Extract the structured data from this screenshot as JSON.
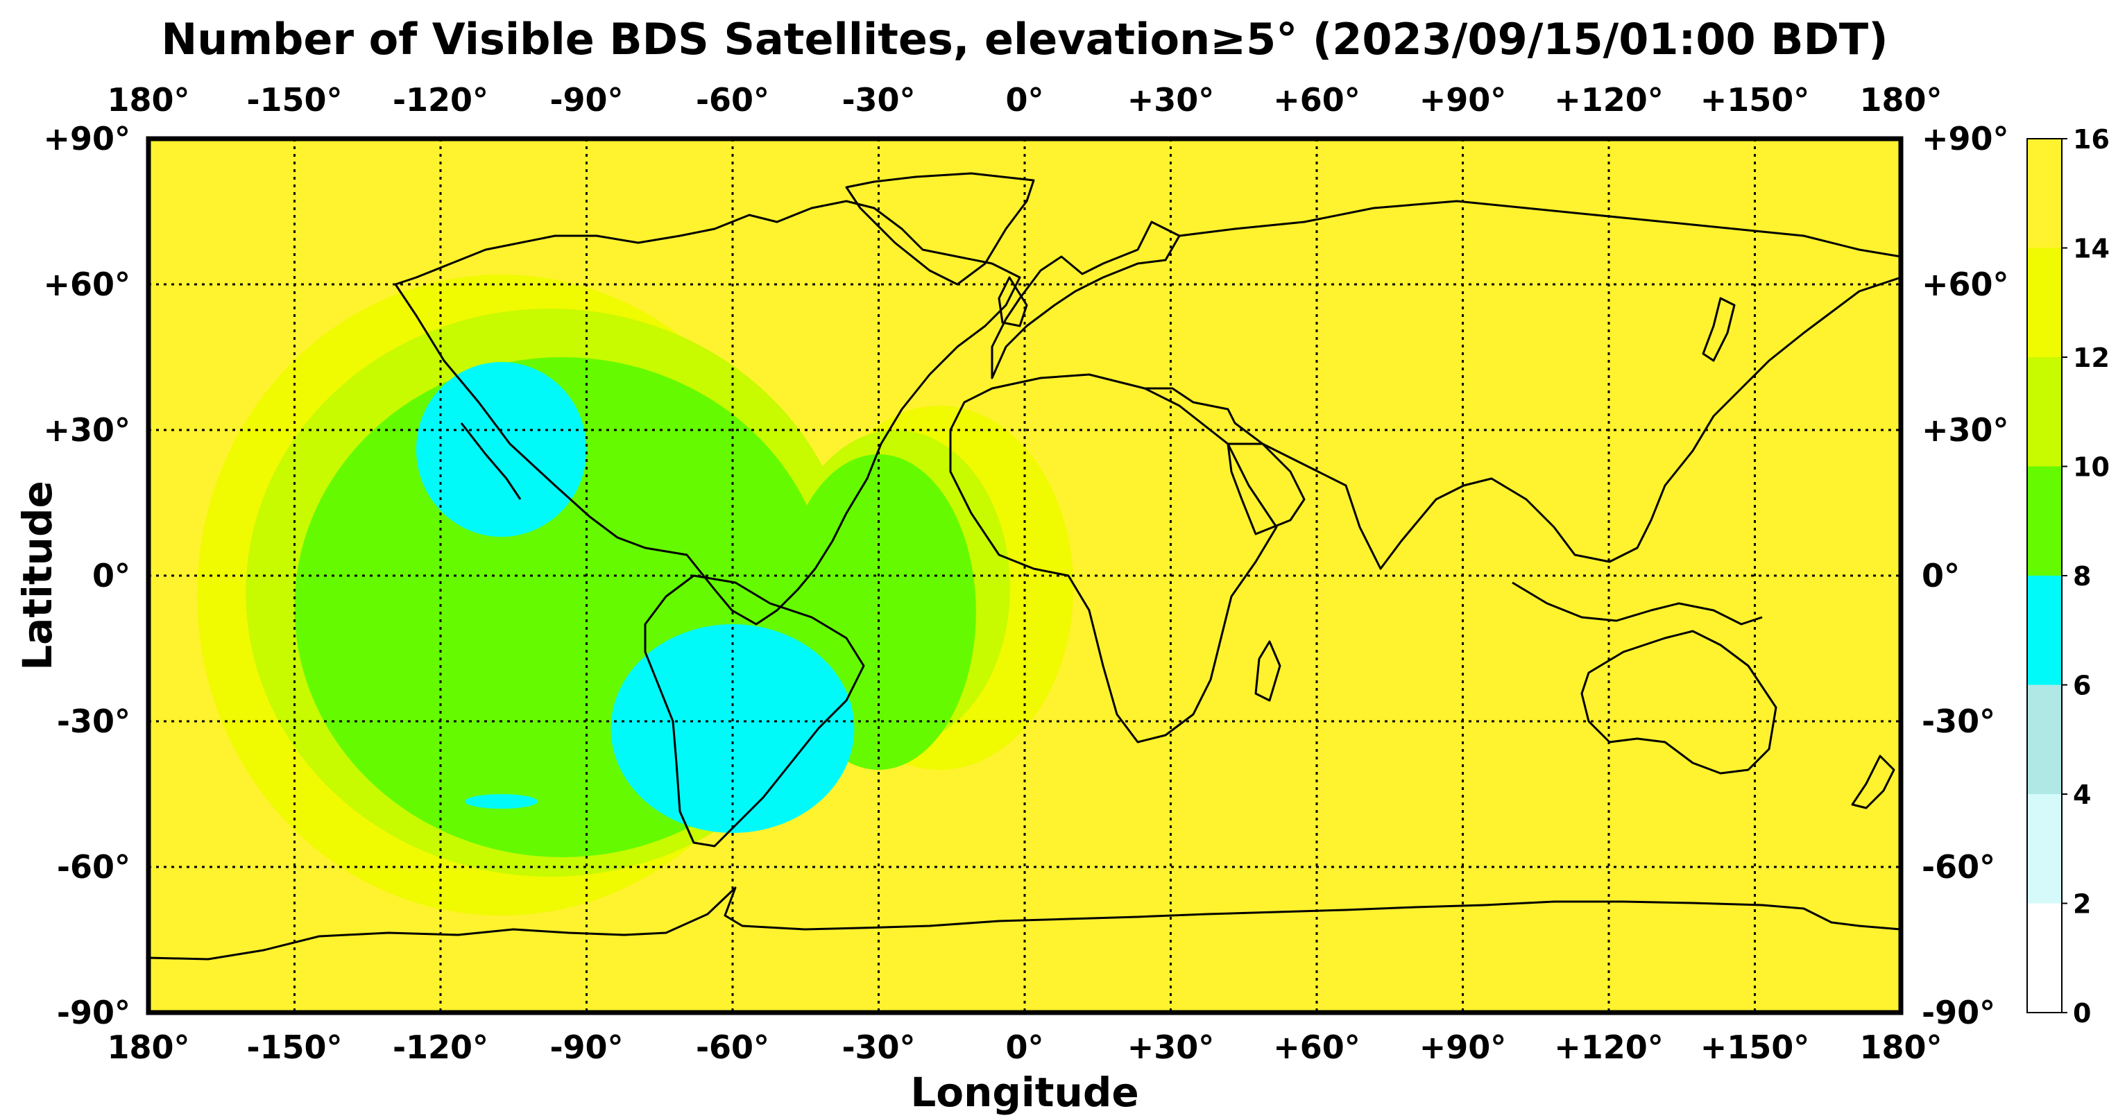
{
  "title": "Number of Visible BDS Satellites, elevation≥5° (2023/09/15/01:00 BDT)",
  "xlabel": "Longitude",
  "ylabel": "Latitude",
  "lon_ticks": [
    "180°",
    "-150°",
    "-120°",
    "-90°",
    "-60°",
    "-30°",
    "0°",
    "+30°",
    "+60°",
    "+90°",
    "+120°",
    "+150°",
    "180°"
  ],
  "lat_ticks": [
    "+90°",
    "+60°",
    "+30°",
    "0°",
    "-30°",
    "-60°",
    "-90°"
  ],
  "colorbar": {
    "ticks": [
      "16",
      "14",
      "12",
      "10",
      "8",
      "6",
      "4",
      "2",
      "0"
    ],
    "bands": [
      {
        "min": 0,
        "max": 2,
        "color": "#ffffff"
      },
      {
        "min": 2,
        "max": 4,
        "color": "#d6fafa"
      },
      {
        "min": 4,
        "max": 6,
        "color": "#b0e8e6"
      },
      {
        "min": 6,
        "max": 8,
        "color": "#00fafa"
      },
      {
        "min": 8,
        "max": 10,
        "color": "#66fa00"
      },
      {
        "min": 10,
        "max": 12,
        "color": "#c8fa00"
      },
      {
        "min": 12,
        "max": 14,
        "color": "#f0fa00"
      },
      {
        "min": 14,
        "max": 16,
        "color": "#fff22e"
      }
    ]
  },
  "chart_data": {
    "type": "heatmap",
    "title": "Number of Visible BDS Satellites, elevation≥5° (2023/09/15/01:00 BDT)",
    "xlabel": "Longitude",
    "ylabel": "Latitude",
    "xlim": [
      -180,
      180
    ],
    "ylim": [
      -90,
      90
    ],
    "grid": true,
    "projection": "equirectangular",
    "colorbar_range": [
      0,
      16
    ],
    "background_value": 15,
    "regions": [
      {
        "value": 13,
        "lon": [
          -170,
          -45
        ],
        "lat": [
          -70,
          62
        ]
      },
      {
        "value": 13,
        "lon": [
          -45,
          10
        ],
        "lat": [
          -40,
          35
        ]
      },
      {
        "value": 11,
        "lon": [
          -160,
          -35
        ],
        "lat": [
          -62,
          55
        ]
      },
      {
        "value": 11,
        "lon": [
          -50,
          -3
        ],
        "lat": [
          -35,
          30
        ]
      },
      {
        "value": 9,
        "lon": [
          -150,
          -40
        ],
        "lat": [
          -58,
          45
        ]
      },
      {
        "value": 9,
        "lon": [
          -50,
          -10
        ],
        "lat": [
          -40,
          25
        ]
      },
      {
        "value": 7,
        "lon": [
          -125,
          -90
        ],
        "lat": [
          8,
          44
        ]
      },
      {
        "value": 7,
        "lon": [
          -85,
          -35
        ],
        "lat": [
          -53,
          -10
        ]
      },
      {
        "value": 7,
        "lon": [
          -115,
          -100
        ],
        "lat": [
          -48,
          -45
        ]
      }
    ]
  }
}
